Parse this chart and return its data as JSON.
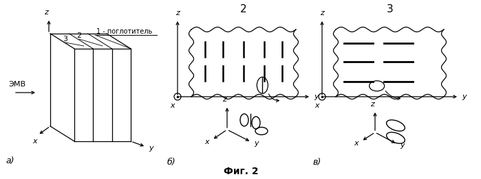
{
  "title": "Фиг. 2",
  "label_a": "а)",
  "label_b": "б)",
  "label_v": "в)",
  "label_2": "2",
  "label_3": "3",
  "annotation_1": "1 - поглотитель",
  "emv_label": "ЭМВ",
  "bg_color": "#ffffff",
  "line_color": "#000000"
}
